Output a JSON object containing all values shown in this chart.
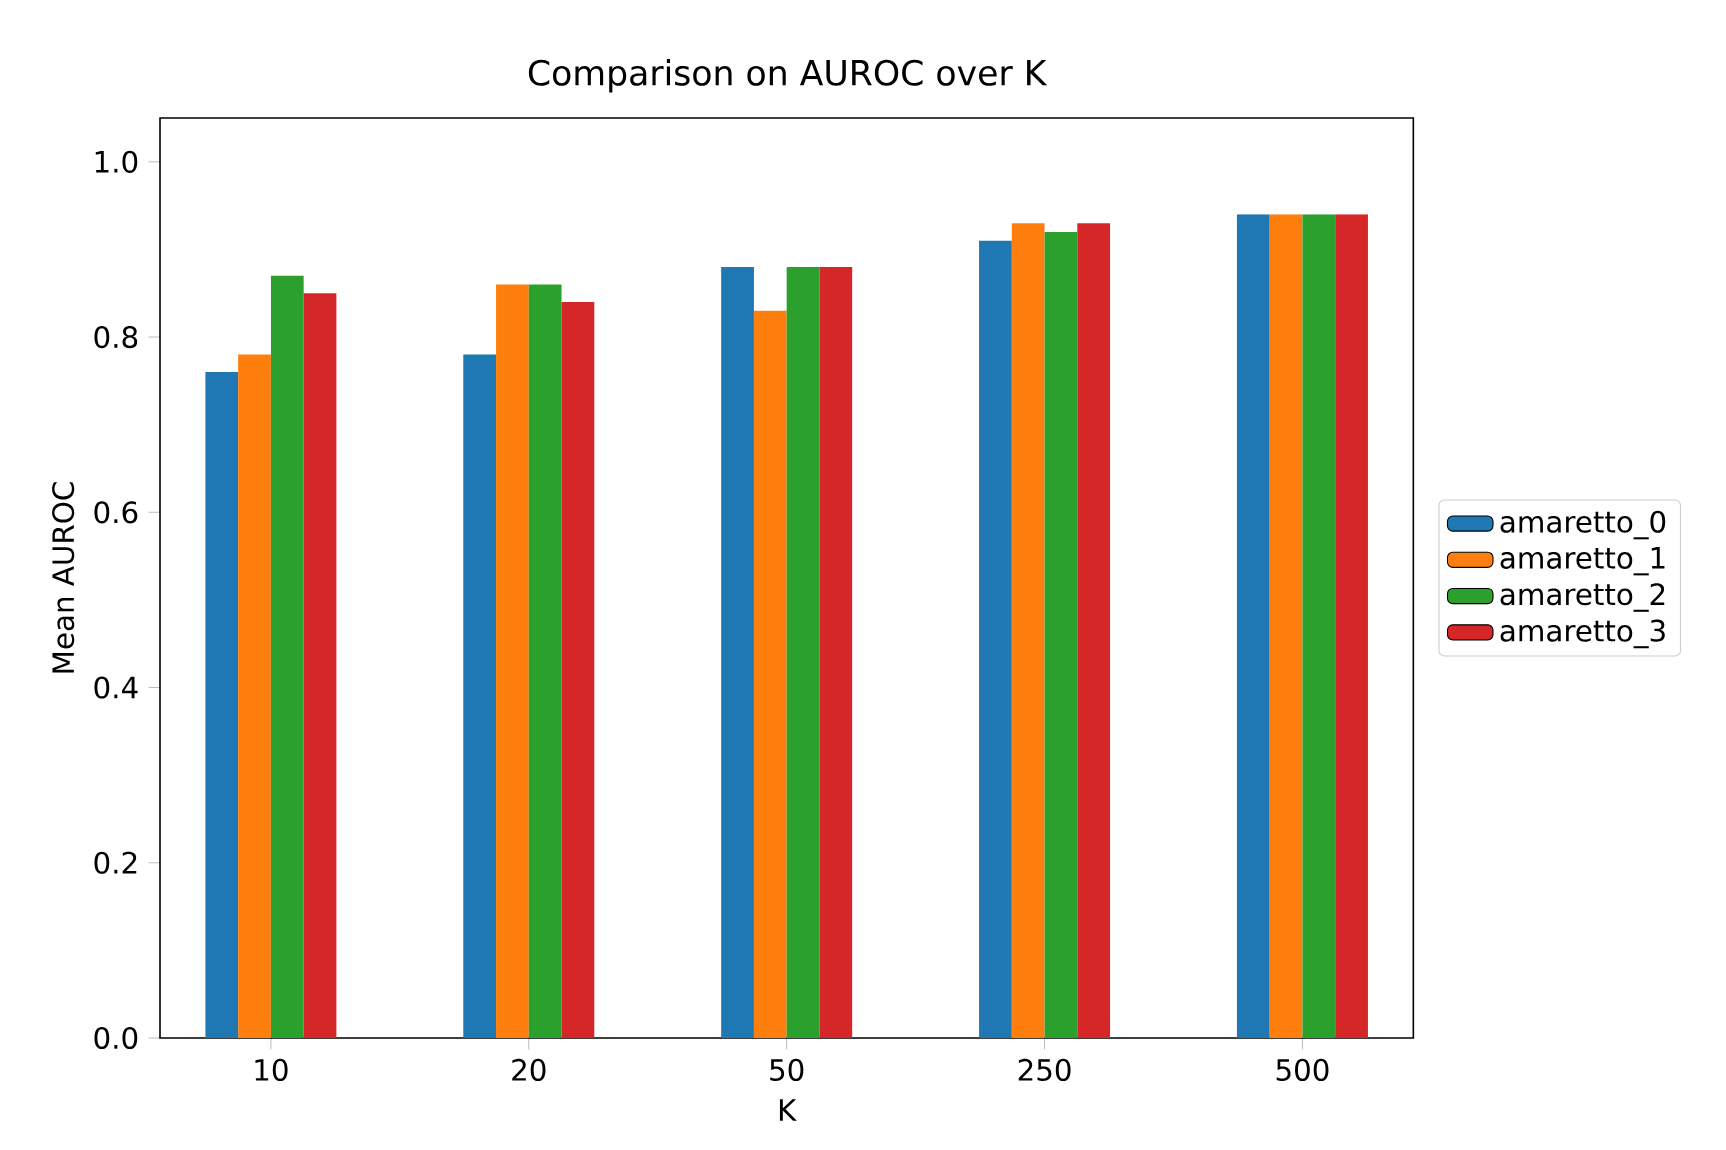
{
  "chart_data": {
    "type": "bar",
    "title": "Comparison on AUROC over K",
    "xlabel": "K",
    "ylabel": "Mean AUROC",
    "categories": [
      "10",
      "20",
      "50",
      "250",
      "500"
    ],
    "series": [
      {
        "name": "amaretto_0",
        "color": "#1f77b4",
        "values": [
          0.76,
          0.78,
          0.88,
          0.91,
          0.94
        ]
      },
      {
        "name": "amaretto_1",
        "color": "#ff7f0e",
        "values": [
          0.78,
          0.86,
          0.83,
          0.93,
          0.94
        ]
      },
      {
        "name": "amaretto_2",
        "color": "#2ca02c",
        "values": [
          0.87,
          0.86,
          0.88,
          0.92,
          0.94
        ]
      },
      {
        "name": "amaretto_3",
        "color": "#d62728",
        "values": [
          0.85,
          0.84,
          0.88,
          0.93,
          0.94
        ]
      }
    ],
    "ylim": [
      0,
      1.05
    ],
    "yticks": [
      {
        "value": 0,
        "label": "0.0"
      },
      {
        "value": 0.2,
        "label": "0.2"
      },
      {
        "value": 0.4,
        "label": "0.4"
      },
      {
        "value": 0.6,
        "label": "0.6"
      },
      {
        "value": 0.8,
        "label": "0.8"
      },
      {
        "value": 1.0,
        "label": "1.0"
      }
    ],
    "legend": "right"
  }
}
